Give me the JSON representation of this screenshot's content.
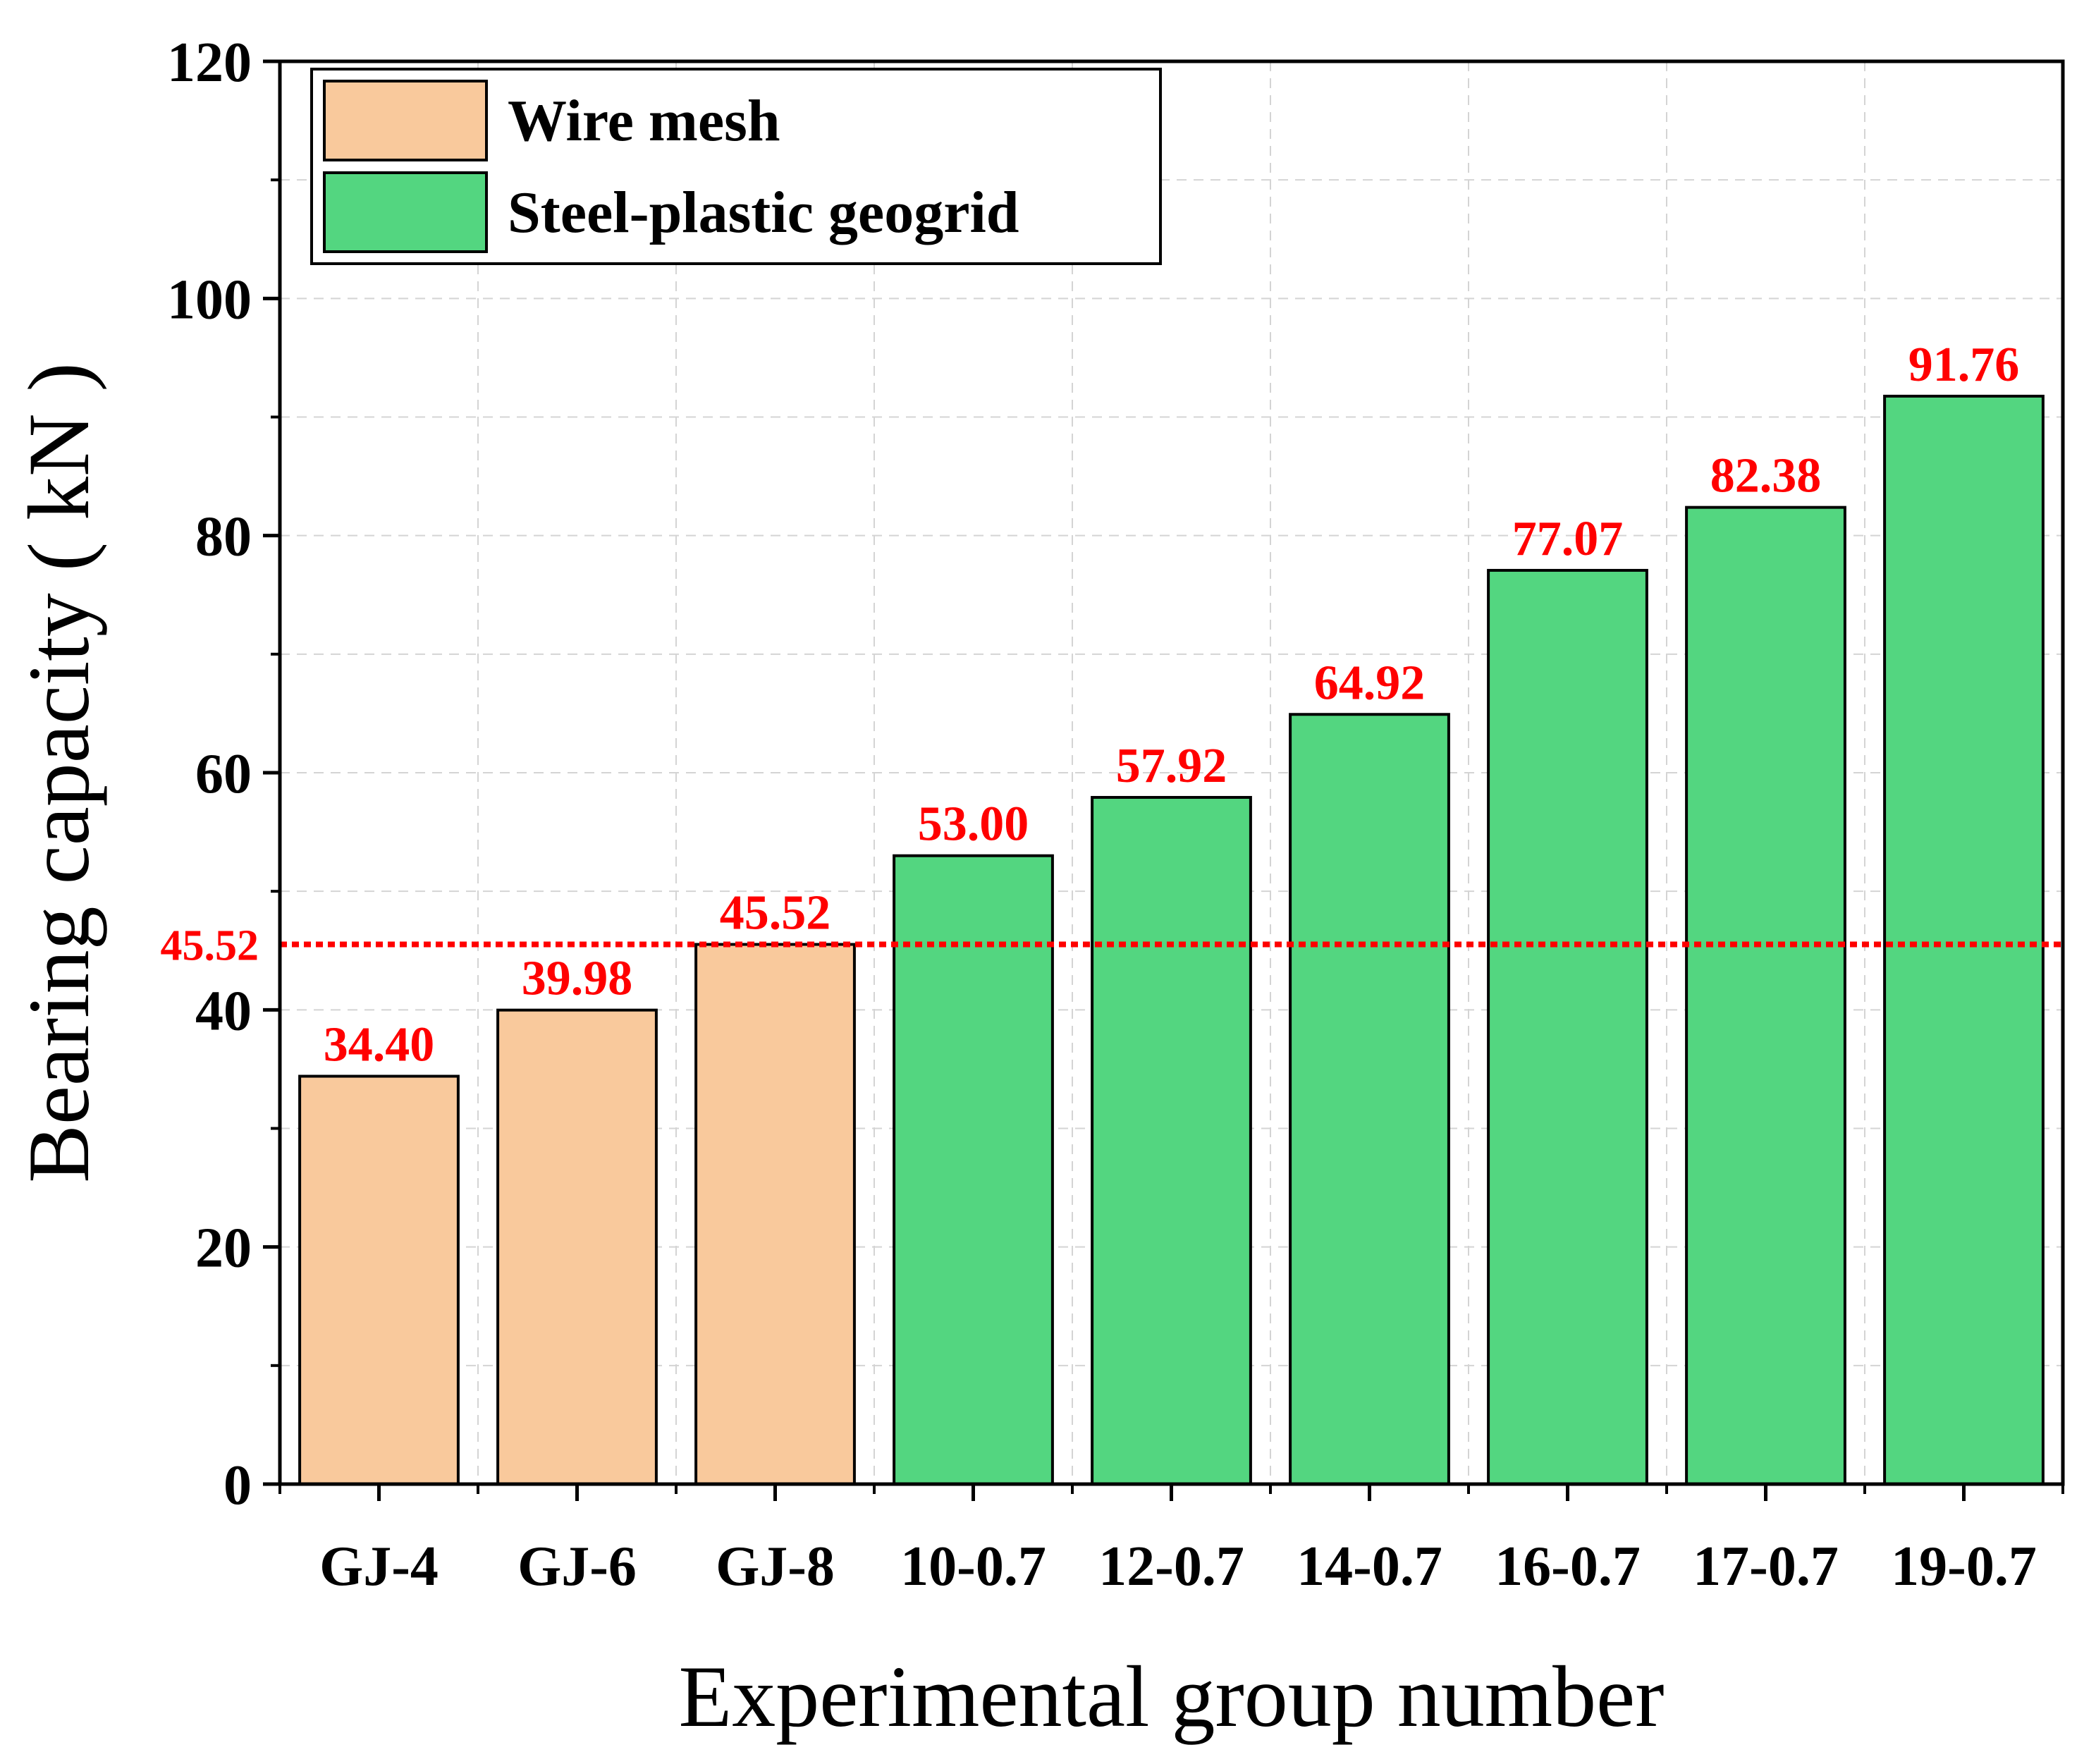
{
  "chart_data": {
    "type": "bar",
    "xlabel": "Experimental group number",
    "ylabel": "Bearing capacity ( kN )",
    "categories": [
      "GJ-4",
      "GJ-6",
      "GJ-8",
      "10-0.7",
      "12-0.7",
      "14-0.7",
      "16-0.7",
      "17-0.7",
      "19-0.7"
    ],
    "values": [
      34.4,
      39.98,
      45.52,
      53.0,
      57.92,
      64.92,
      77.07,
      82.38,
      91.76
    ],
    "data_labels": [
      "34.40",
      "39.98",
      "45.52",
      "53.00",
      "57.92",
      "64.92",
      "77.07",
      "82.38",
      "91.76"
    ],
    "bar_group": [
      0,
      0,
      0,
      1,
      1,
      1,
      1,
      1,
      1
    ],
    "series": [
      {
        "name": "Wire mesh",
        "color": "#f9c99c"
      },
      {
        "name": "Steel-plastic geogrid",
        "color": "#53d680"
      }
    ],
    "ylim": [
      0,
      120
    ],
    "y_ticks": [
      "0",
      "20",
      "40",
      "60",
      "80",
      "100",
      "120"
    ],
    "y_tick_values": [
      0,
      20,
      40,
      60,
      80,
      100,
      120
    ],
    "reference_line": {
      "value": 45.52,
      "label": "45.52",
      "color": "#ff0000",
      "style": "dotted"
    },
    "grid": true,
    "legend_position": "top-left",
    "label_color": "#ff0000"
  }
}
